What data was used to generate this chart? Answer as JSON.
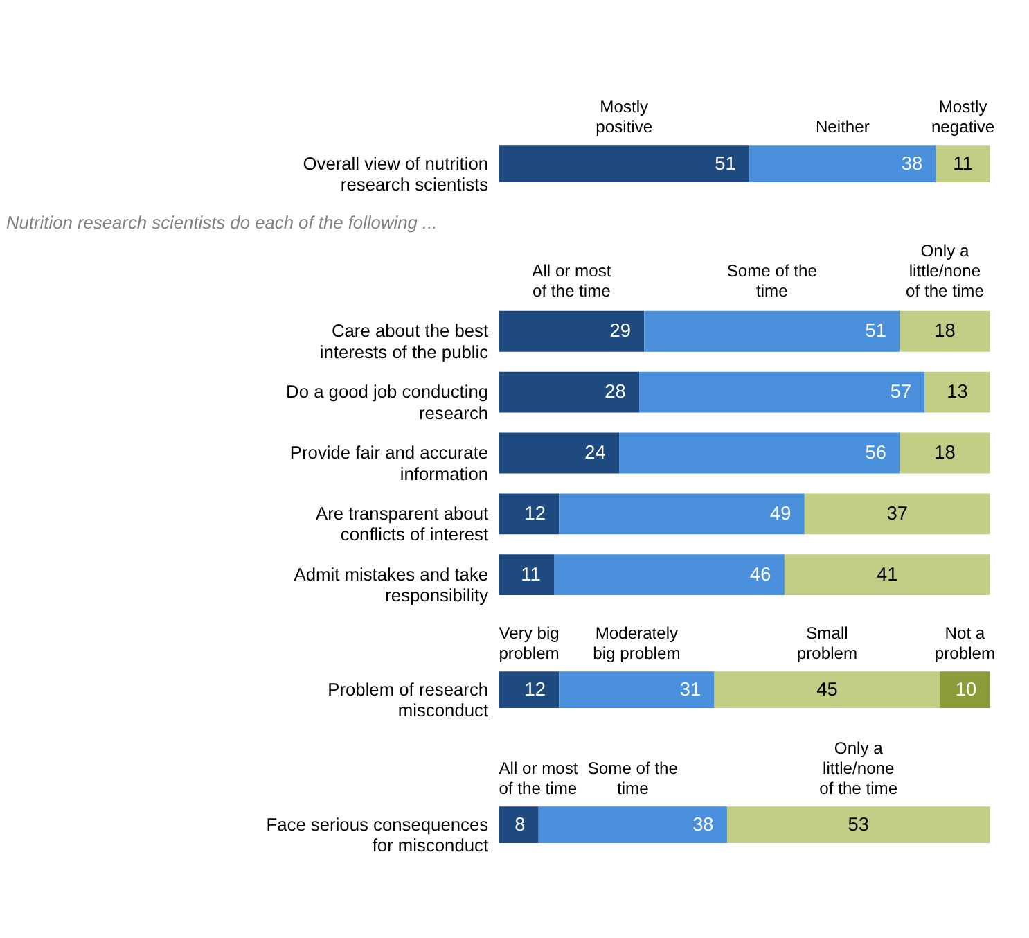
{
  "chart_data": [
    {
      "type": "bar",
      "orientation": "horizontal",
      "stacked": true,
      "data_labels": true,
      "tick_labels": "y",
      "categories": [
        "Overall view of nutrition research scientists"
      ],
      "series": [
        {
          "name": "Mostly positive",
          "color": "#1f4a7f",
          "values": [
            51
          ]
        },
        {
          "name": "Neither",
          "color": "#4a8fdb",
          "values": [
            38
          ]
        },
        {
          "name": "Mostly negative",
          "color": "#c2cd86",
          "values": [
            11
          ]
        }
      ]
    },
    {
      "type": "bar",
      "orientation": "horizontal",
      "stacked": true,
      "data_labels": true,
      "tick_labels": "y",
      "subtitle": "Nutrition research scientists do each of the following ...",
      "categories": [
        "Care about the best interests of the public",
        "Do a good job conducting research",
        "Provide fair and accurate information",
        "Are transparent about conflicts of interest",
        "Admit mistakes and take responsibility"
      ],
      "series": [
        {
          "name": "All or most of the time",
          "color": "#1f4a7f",
          "values": [
            29,
            28,
            24,
            12,
            11
          ]
        },
        {
          "name": "Some of the time",
          "color": "#4a8fdb",
          "values": [
            51,
            57,
            56,
            49,
            46
          ]
        },
        {
          "name": "Only a little/none of the time",
          "color": "#c2cd86",
          "values": [
            18,
            13,
            18,
            37,
            41
          ]
        }
      ]
    },
    {
      "type": "bar",
      "orientation": "horizontal",
      "stacked": true,
      "data_labels": true,
      "tick_labels": "y",
      "categories": [
        "Problem of research misconduct"
      ],
      "series": [
        {
          "name": "Very big problem",
          "color": "#1f4a7f",
          "values": [
            12
          ]
        },
        {
          "name": "Moderately big problem",
          "color": "#4a8fdb",
          "values": [
            31
          ]
        },
        {
          "name": "Small problem",
          "color": "#c2cd86",
          "values": [
            45
          ]
        },
        {
          "name": "Not a problem",
          "color": "#8b9b3a",
          "values": [
            10
          ]
        }
      ]
    },
    {
      "type": "bar",
      "orientation": "horizontal",
      "stacked": true,
      "data_labels": true,
      "tick_labels": "y",
      "categories": [
        "Face serious consequences for misconduct"
      ],
      "series": [
        {
          "name": "All or most of the time",
          "color": "#1f4a7f",
          "values": [
            8
          ]
        },
        {
          "name": "Some of the time",
          "color": "#4a8fdb",
          "values": [
            38
          ]
        },
        {
          "name": "Only a little/none of the time",
          "color": "#c2cd86",
          "values": [
            53
          ]
        }
      ]
    }
  ]
}
